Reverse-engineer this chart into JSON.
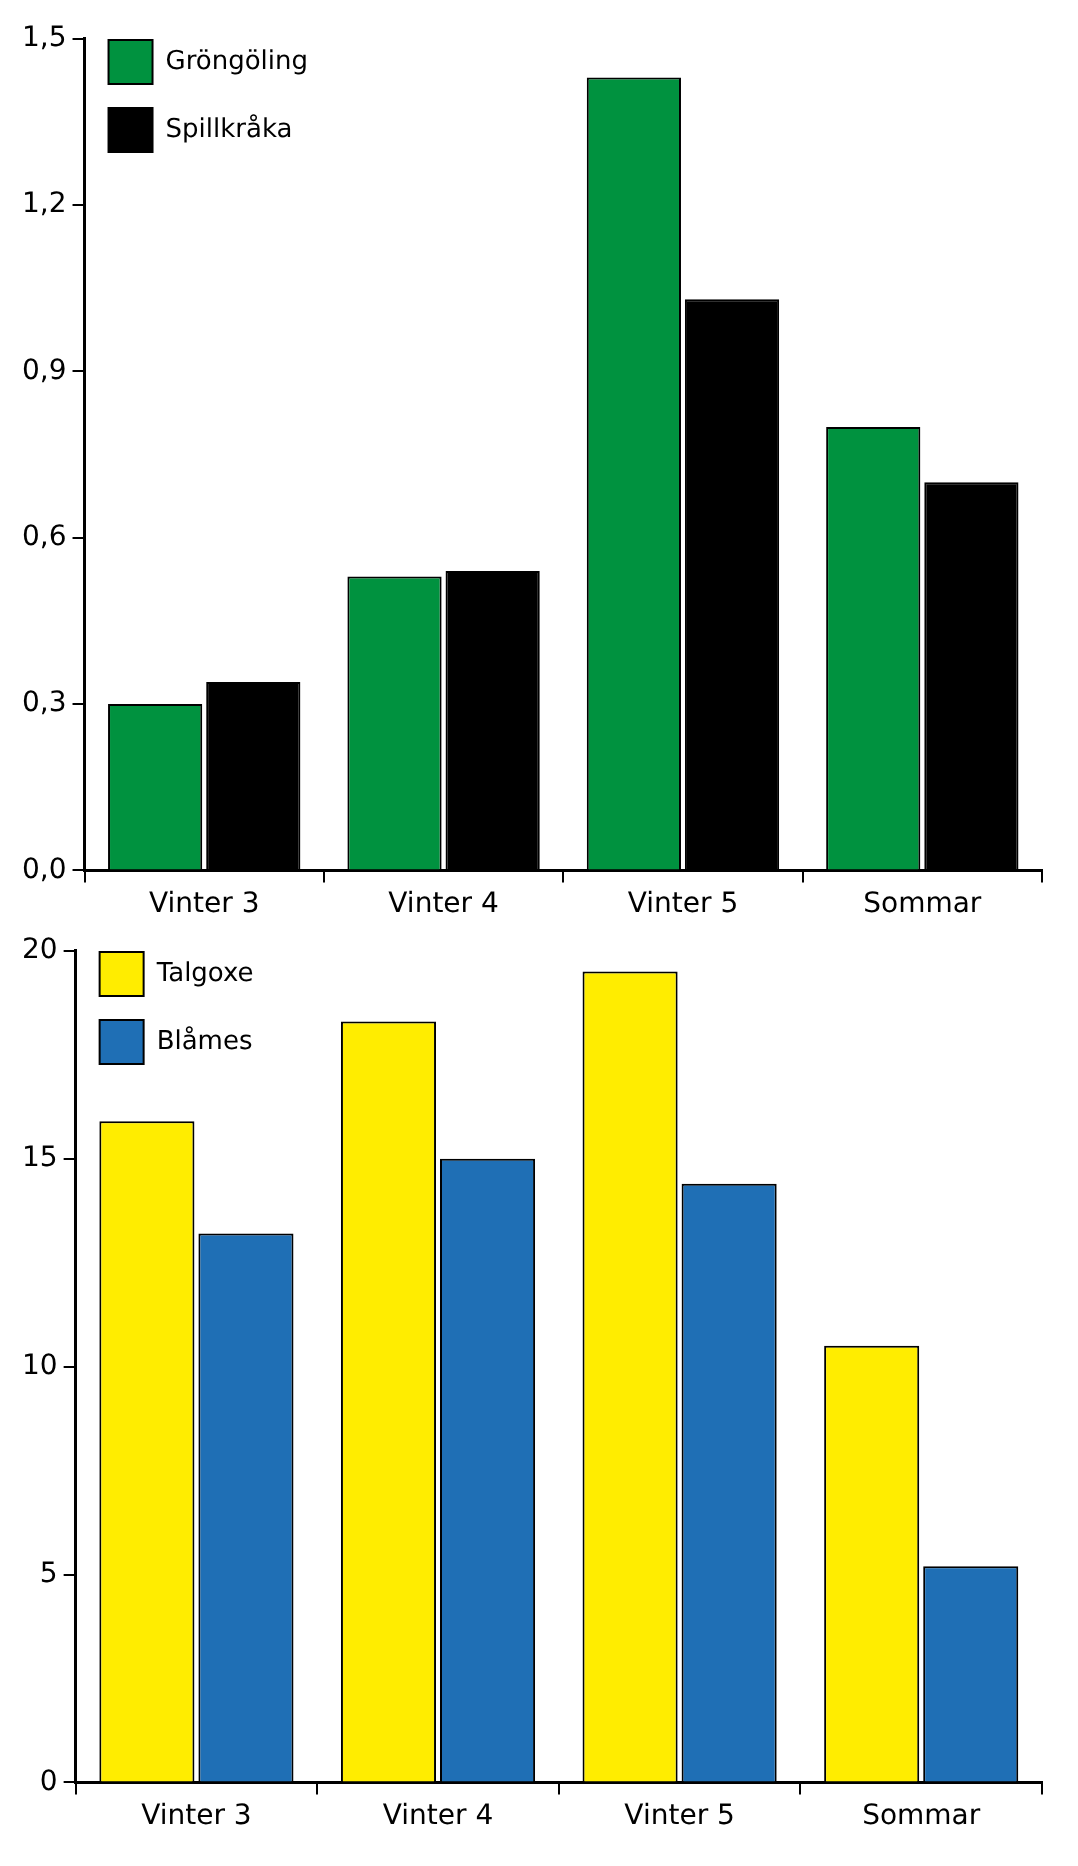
{
  "chart_data": [
    {
      "type": "bar",
      "categories": [
        "Vinter 3",
        "Vinter 4",
        "Vinter 5",
        "Sommar"
      ],
      "series": [
        {
          "name": "Gröngöling",
          "color": "#00923f",
          "values": [
            0.3,
            0.53,
            1.43,
            0.8
          ]
        },
        {
          "name": "Spillkråka",
          "color": "#000000",
          "values": [
            0.34,
            0.54,
            1.03,
            0.7
          ]
        }
      ],
      "ylim": [
        0,
        1.5
      ],
      "yticks": [
        {
          "value": 0,
          "label": "0,0"
        },
        {
          "value": 0.3,
          "label": "0,3"
        },
        {
          "value": 0.6,
          "label": "0,6"
        },
        {
          "value": 0.9,
          "label": "0,9"
        },
        {
          "value": 1.2,
          "label": "1,2"
        },
        {
          "value": 1.5,
          "label": "1,5"
        }
      ],
      "legend": "top left",
      "grid": false
    },
    {
      "type": "bar",
      "categories": [
        "Vinter 3",
        "Vinter 4",
        "Vinter 5",
        "Sommar"
      ],
      "series": [
        {
          "name": "Talgoxe",
          "color": "#ffed00",
          "values": [
            15.9,
            18.3,
            19.5,
            10.5
          ]
        },
        {
          "name": "Blåmes",
          "color": "#1f6fb5",
          "values": [
            13.2,
            15.0,
            14.4,
            5.2
          ]
        }
      ],
      "ylim": [
        0,
        20
      ],
      "yticks": [
        0,
        5,
        10,
        15,
        20
      ],
      "legend": "top left",
      "grid": false
    }
  ]
}
